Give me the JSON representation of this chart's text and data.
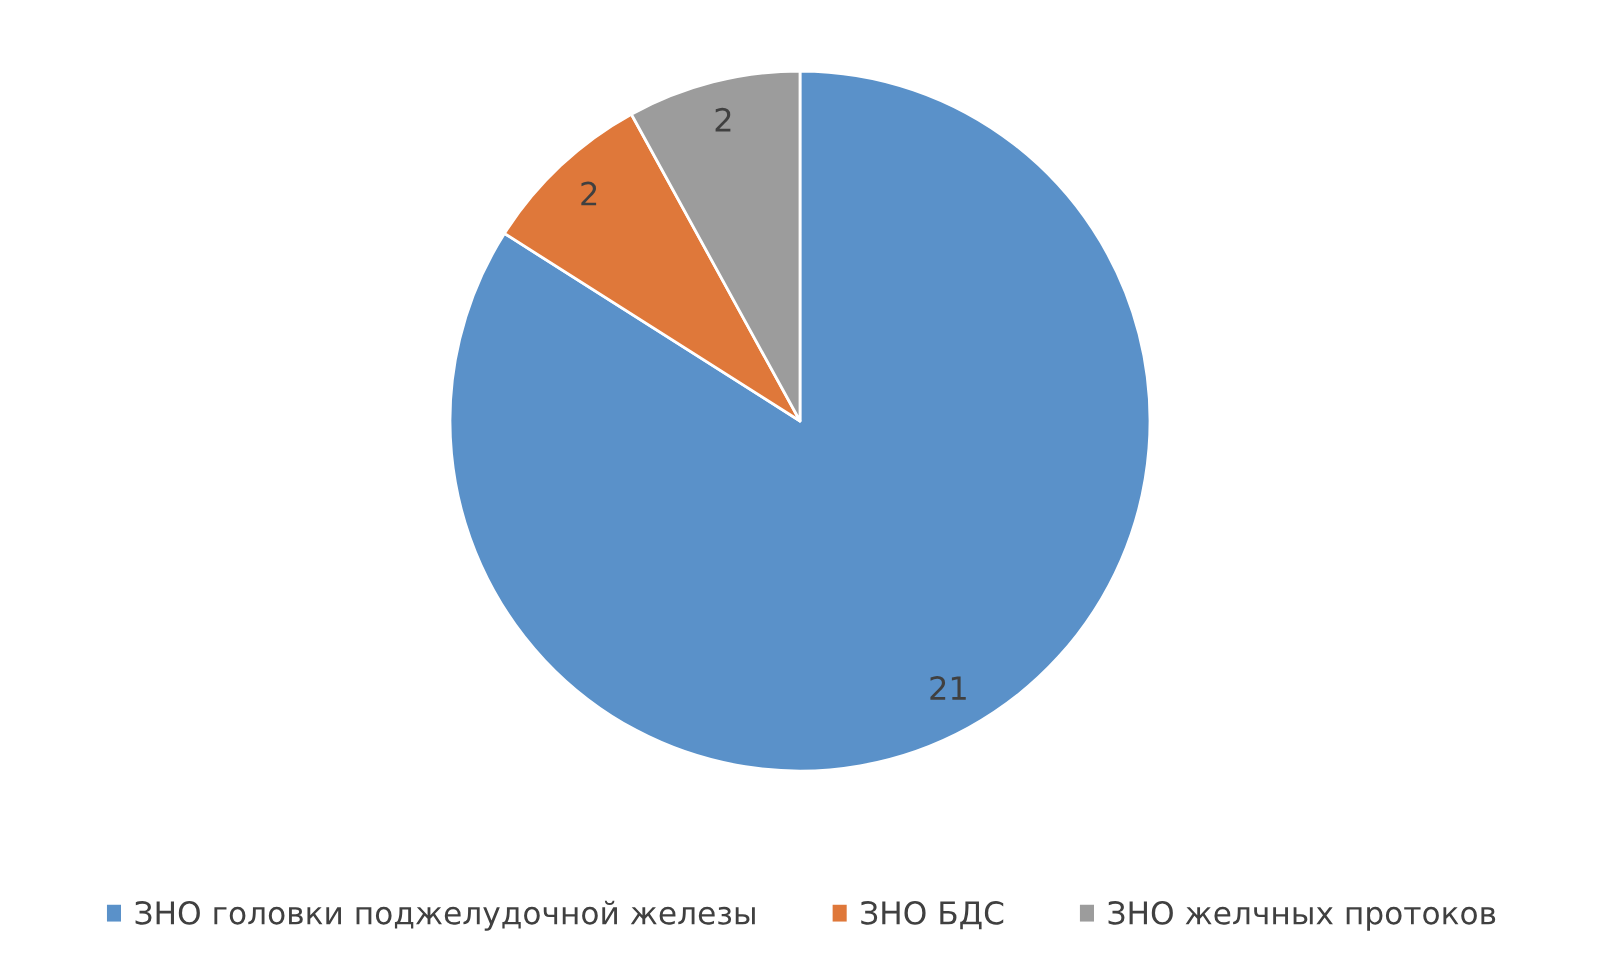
{
  "chart_data": {
    "type": "pie",
    "categories": [
      "ЗНО головки поджелудочной железы",
      "ЗНО БДС",
      "ЗНО желчных протоков"
    ],
    "values": [
      21,
      2,
      2
    ],
    "colors": [
      "#5a91c9",
      "#df783a",
      "#9c9c9c"
    ],
    "data_labels": true,
    "legend": "bottom"
  }
}
